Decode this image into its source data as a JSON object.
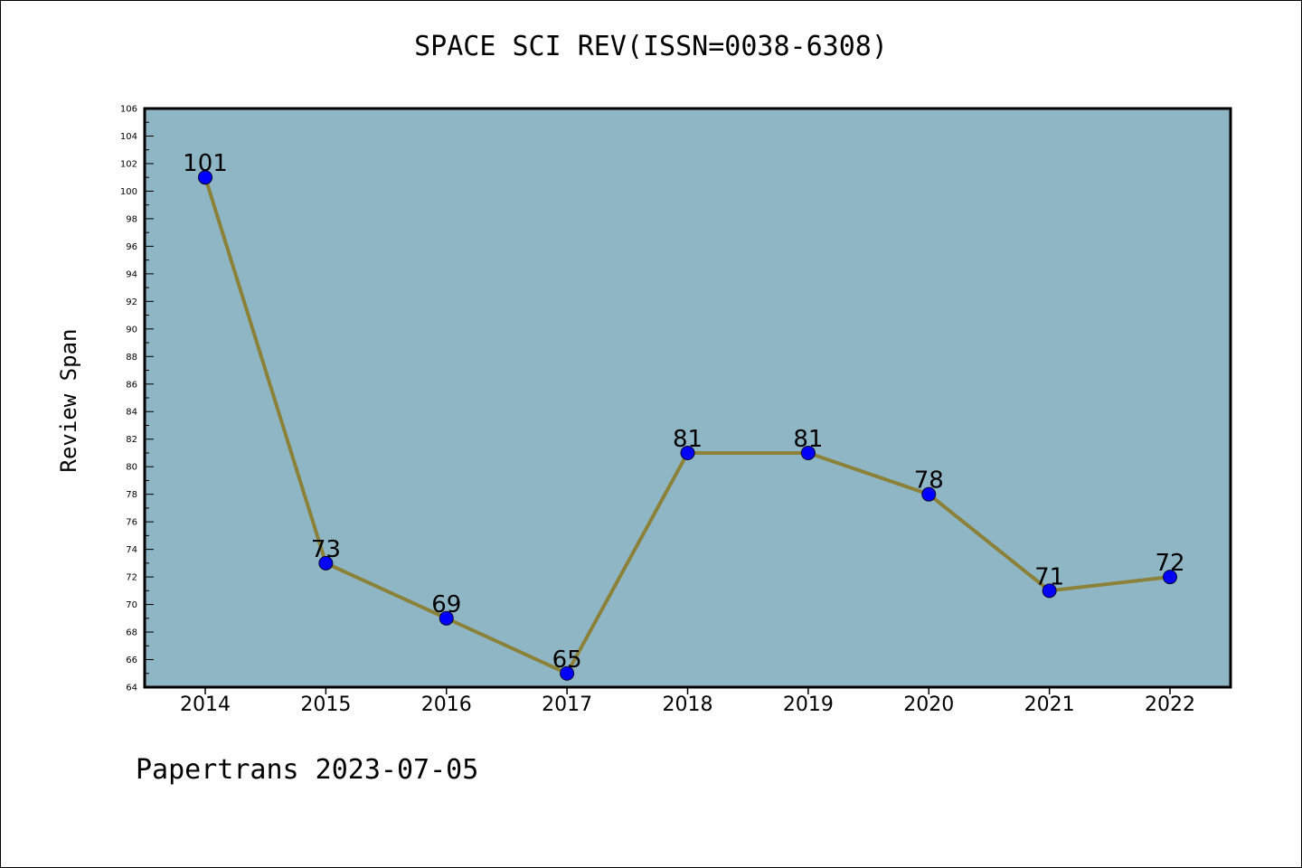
{
  "chart_data": {
    "type": "line",
    "title": "SPACE SCI REV(ISSN=0038-6308)",
    "ylabel": "Review Span",
    "xlabel": "",
    "categories": [
      "2014",
      "2015",
      "2016",
      "2017",
      "2018",
      "2019",
      "2020",
      "2021",
      "2022"
    ],
    "series": [
      {
        "values": [
          101,
          73,
          69,
          65,
          81,
          81,
          78,
          71,
          72
        ]
      }
    ],
    "data_labels": [
      "101",
      "73",
      "69",
      "65",
      "81",
      "81",
      "78",
      "71",
      "72"
    ],
    "ylim": [
      64,
      106
    ],
    "yticks": [
      "64",
      "66",
      "68",
      "70",
      "72",
      "74",
      "76",
      "78",
      "80",
      "82",
      "84",
      "86",
      "88",
      "90",
      "92",
      "94",
      "96",
      "98",
      "100",
      "102",
      "104",
      "106"
    ],
    "grid": false,
    "colors": {
      "plot_background": "#8fb6c5",
      "line": "#8b8138",
      "marker": "#0000ff"
    }
  },
  "footer": "Papertrans 2023-07-05"
}
